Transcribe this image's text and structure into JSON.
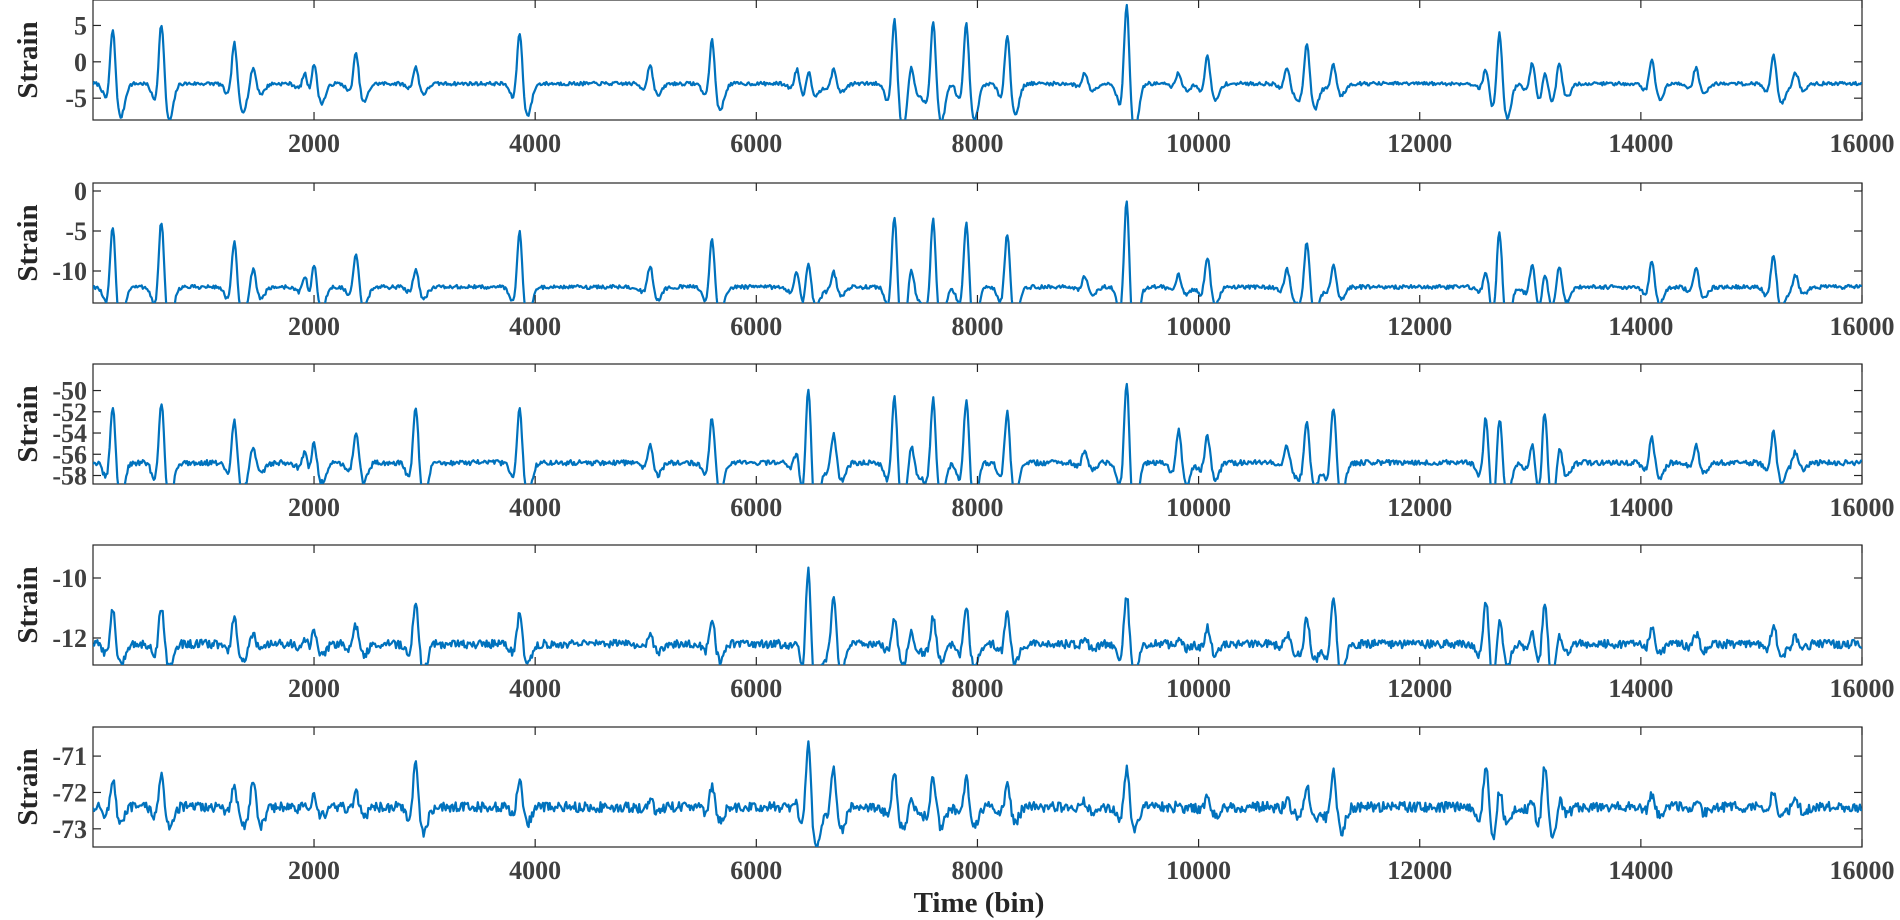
{
  "chart_data": {
    "type": "line",
    "line_color": "#0072BD",
    "grid": false,
    "xlabel": "Time (bin)",
    "xlim": [
      1,
      16000
    ],
    "xticks": [
      2000,
      4000,
      6000,
      8000,
      10000,
      12000,
      14000,
      16000
    ],
    "x_tick_labels": [
      "2000",
      "4000",
      "6000",
      "8000",
      "10000",
      "12000",
      "14000",
      "16000"
    ],
    "noise_seed": 7,
    "events": [
      {
        "t": 180,
        "amp": 1.0
      },
      {
        "t": 620,
        "amp": 1.1
      },
      {
        "t": 1280,
        "amp": 0.75
      },
      {
        "t": 1450,
        "amp": 0.3
      },
      {
        "t": 1920,
        "amp": 0.3
      },
      {
        "t": 2000,
        "amp": 0.55
      },
      {
        "t": 2380,
        "amp": 0.55
      },
      {
        "t": 2920,
        "amp": 0.3
      },
      {
        "t": 3860,
        "amp": 0.95
      },
      {
        "t": 5040,
        "amp": 0.35
      },
      {
        "t": 5600,
        "amp": 0.8
      },
      {
        "t": 6370,
        "amp": 0.3
      },
      {
        "t": 6470,
        "amp": 0.35
      },
      {
        "t": 6700,
        "amp": 0.25
      },
      {
        "t": 7250,
        "amp": 1.2
      },
      {
        "t": 7400,
        "amp": 0.35
      },
      {
        "t": 7600,
        "amp": 1.15
      },
      {
        "t": 7900,
        "amp": 1.1
      },
      {
        "t": 8270,
        "amp": 0.9
      },
      {
        "t": 8970,
        "amp": 0.2
      },
      {
        "t": 9350,
        "amp": 1.45
      },
      {
        "t": 9820,
        "amp": 0.2
      },
      {
        "t": 10080,
        "amp": 0.5
      },
      {
        "t": 10800,
        "amp": 0.3
      },
      {
        "t": 10980,
        "amp": 0.75
      },
      {
        "t": 11220,
        "amp": 0.35
      },
      {
        "t": 12600,
        "amp": 0.3
      },
      {
        "t": 12720,
        "amp": 1.0
      },
      {
        "t": 13020,
        "amp": 0.4
      },
      {
        "t": 13130,
        "amp": 0.35
      },
      {
        "t": 13260,
        "amp": 0.4
      },
      {
        "t": 14100,
        "amp": 0.45
      },
      {
        "t": 14500,
        "amp": 0.3
      },
      {
        "t": 15200,
        "amp": 0.55
      },
      {
        "t": 15400,
        "amp": 0.2
      }
    ],
    "panels": [
      {
        "ylabel": "Strain",
        "ylim": [
          -8,
          8.5
        ],
        "yticks": [
          -5,
          0,
          5
        ],
        "y_tick_labels": [
          "-5",
          "0",
          "5"
        ],
        "baseline": -3,
        "noise": 0.25,
        "event_scale": 8.5,
        "event_overrides": []
      },
      {
        "ylabel": "Strain",
        "ylim": [
          -14,
          1
        ],
        "yticks": [
          -10,
          -5,
          0
        ],
        "y_tick_labels": [
          "-10",
          "-5",
          "0"
        ],
        "baseline": -12,
        "noise": 0.25,
        "event_scale": 8.5,
        "event_overrides": [
          {
            "t": 6470,
            "amp": 0.55
          }
        ]
      },
      {
        "ylabel": "Strain",
        "ylim": [
          -58.8,
          -47.5
        ],
        "yticks": [
          -58,
          -56,
          -54,
          -52,
          -50
        ],
        "y_tick_labels": [
          "-58",
          "-56",
          "-54",
          "-52",
          "-50"
        ],
        "baseline": -56.8,
        "noise": 0.25,
        "event_scale": 6.0,
        "event_overrides": [
          {
            "t": 2920,
            "amp": 1.0
          },
          {
            "t": 6470,
            "amp": 1.5
          },
          {
            "t": 6700,
            "amp": 0.5
          },
          {
            "t": 9820,
            "amp": 0.6
          },
          {
            "t": 11220,
            "amp": 1.0
          },
          {
            "t": 12600,
            "amp": 0.85
          },
          {
            "t": 13130,
            "amp": 1.05
          }
        ]
      },
      {
        "ylabel": "Strain",
        "ylim": [
          -12.9,
          -8.9
        ],
        "yticks": [
          -12,
          -10
        ],
        "y_tick_labels": [
          "-12",
          "-10"
        ],
        "baseline": -12.2,
        "noise": 0.14,
        "event_scale": 1.3,
        "event_overrides": [
          {
            "t": 2920,
            "amp": 1.3
          },
          {
            "t": 6470,
            "amp": 2.3
          },
          {
            "t": 6700,
            "amp": 1.3
          },
          {
            "t": 11220,
            "amp": 1.4
          },
          {
            "t": 12600,
            "amp": 1.3
          },
          {
            "t": 13130,
            "amp": 1.4
          },
          {
            "t": 7250,
            "amp": 0.8
          },
          {
            "t": 7600,
            "amp": 0.8
          }
        ]
      },
      {
        "ylabel": "Strain",
        "ylim": [
          -73.5,
          -70.2
        ],
        "yticks": [
          -73,
          -72,
          -71
        ],
        "y_tick_labels": [
          "-73",
          "-72",
          "-71"
        ],
        "baseline": -72.4,
        "noise": 0.14,
        "event_scale": 0.85,
        "event_overrides": [
          {
            "t": 2920,
            "amp": 1.6
          },
          {
            "t": 6470,
            "amp": 2.5
          },
          {
            "t": 6700,
            "amp": 1.4
          },
          {
            "t": 11220,
            "amp": 1.45
          },
          {
            "t": 12600,
            "amp": 1.6
          },
          {
            "t": 13130,
            "amp": 1.7
          },
          {
            "t": 1450,
            "amp": 1.1
          }
        ]
      }
    ]
  }
}
